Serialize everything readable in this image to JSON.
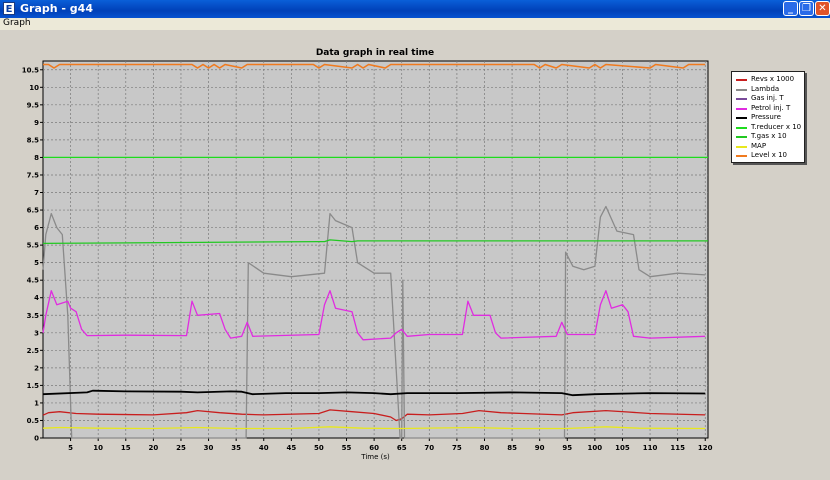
{
  "window": {
    "title": "Graph - g44",
    "icon_letter": "E",
    "buttons": {
      "minimize": "_",
      "restore": "❐",
      "close": "✕"
    }
  },
  "menu": {
    "items": [
      "Graph"
    ]
  },
  "colors": {
    "revs": "#c81e1e",
    "lambda": "#8a8a8a",
    "gas_inj": "#7a4a9a",
    "petrol_inj": "#e02ce0",
    "pressure": "#000000",
    "t_reducer": "#1edc1e",
    "t_gas": "#22c822",
    "map": "#e8e81e",
    "level": "#f07a1e"
  },
  "chart_data": {
    "type": "line",
    "title": "Data graph in real time",
    "xlabel": "Time (s)",
    "ylabel": "",
    "xlim": [
      0,
      120.5
    ],
    "ylim": [
      0,
      10.75
    ],
    "grid": true,
    "legend_placement": "right",
    "xticks": [
      5,
      10,
      15,
      20,
      25,
      30,
      35,
      40,
      45,
      50,
      55,
      60,
      65,
      70,
      75,
      80,
      85,
      90,
      95,
      100,
      105,
      110,
      115,
      120
    ],
    "yticks": [
      0,
      0.5,
      1,
      1.5,
      2,
      2.5,
      3,
      3.5,
      4,
      4.5,
      5,
      5.5,
      6,
      6.5,
      7,
      7.5,
      8,
      8.5,
      9,
      9.5,
      10,
      10.5
    ],
    "ytick_labels": [
      "0",
      "0.5",
      "1",
      "1.5",
      "2",
      "2.5",
      "3",
      "3.5",
      "4",
      "4.5",
      "5",
      "5.5",
      "6",
      "6.5",
      "7",
      "7.5",
      "8",
      "8.5",
      "9",
      "9.5",
      "10",
      "10.5"
    ],
    "series": [
      {
        "name": "Revs x 1000",
        "color_key": "revs",
        "points": [
          [
            0,
            0.65
          ],
          [
            1,
            0.72
          ],
          [
            3,
            0.75
          ],
          [
            6,
            0.7
          ],
          [
            10,
            0.68
          ],
          [
            20,
            0.66
          ],
          [
            26,
            0.72
          ],
          [
            28,
            0.78
          ],
          [
            32,
            0.72
          ],
          [
            36,
            0.68
          ],
          [
            40,
            0.66
          ],
          [
            50,
            0.7
          ],
          [
            52,
            0.8
          ],
          [
            56,
            0.75
          ],
          [
            60,
            0.7
          ],
          [
            63,
            0.6
          ],
          [
            64,
            0.5
          ],
          [
            65,
            0.55
          ],
          [
            66,
            0.68
          ],
          [
            70,
            0.66
          ],
          [
            76,
            0.7
          ],
          [
            79,
            0.78
          ],
          [
            83,
            0.72
          ],
          [
            87,
            0.7
          ],
          [
            94,
            0.66
          ],
          [
            96,
            0.72
          ],
          [
            102,
            0.78
          ],
          [
            106,
            0.74
          ],
          [
            110,
            0.7
          ],
          [
            120,
            0.66
          ]
        ]
      },
      {
        "name": "Lambda",
        "color_key": "lambda",
        "points": [
          [
            0,
            4.8
          ],
          [
            0.5,
            5.8
          ],
          [
            1.5,
            6.4
          ],
          [
            2.5,
            6.0
          ],
          [
            3.5,
            5.8
          ],
          [
            4.5,
            3.5
          ],
          [
            5.2,
            0
          ],
          [
            36.8,
            0
          ],
          [
            37.2,
            5.0
          ],
          [
            40,
            4.7
          ],
          [
            45,
            4.6
          ],
          [
            51,
            4.7
          ],
          [
            52,
            6.4
          ],
          [
            53,
            6.2
          ],
          [
            56,
            6.0
          ],
          [
            57,
            5.0
          ],
          [
            60,
            4.7
          ],
          [
            63,
            4.7
          ],
          [
            64.7,
            0
          ],
          [
            65,
            0
          ],
          [
            65.2,
            4.5
          ],
          [
            65.5,
            0
          ],
          [
            94.5,
            0
          ],
          [
            94.7,
            5.3
          ],
          [
            96,
            4.9
          ],
          [
            98,
            4.8
          ],
          [
            100,
            4.9
          ],
          [
            101,
            6.3
          ],
          [
            102,
            6.6
          ],
          [
            104,
            5.9
          ],
          [
            107,
            5.8
          ],
          [
            108,
            4.8
          ],
          [
            110,
            4.6
          ],
          [
            115,
            4.7
          ],
          [
            120,
            4.65
          ]
        ]
      },
      {
        "name": "Gas inj. T",
        "color_key": "gas_inj",
        "points": []
      },
      {
        "name": "Petrol inj. T",
        "color_key": "petrol_inj",
        "points": [
          [
            0,
            3.0
          ],
          [
            0.5,
            3.5
          ],
          [
            1.5,
            4.2
          ],
          [
            2.5,
            3.8
          ],
          [
            4.5,
            3.9
          ],
          [
            5,
            3.7
          ],
          [
            6,
            3.6
          ],
          [
            7,
            3.1
          ],
          [
            8,
            2.92
          ],
          [
            15,
            2.93
          ],
          [
            26,
            2.92
          ],
          [
            27,
            3.9
          ],
          [
            28,
            3.5
          ],
          [
            32,
            3.55
          ],
          [
            33,
            3.1
          ],
          [
            34,
            2.85
          ],
          [
            36,
            2.9
          ],
          [
            37,
            3.3
          ],
          [
            38,
            2.9
          ],
          [
            50,
            2.95
          ],
          [
            51,
            3.8
          ],
          [
            52,
            4.2
          ],
          [
            53,
            3.7
          ],
          [
            56,
            3.6
          ],
          [
            57,
            3.0
          ],
          [
            58,
            2.8
          ],
          [
            63,
            2.85
          ],
          [
            64,
            3.0
          ],
          [
            65,
            3.1
          ],
          [
            66,
            2.9
          ],
          [
            70,
            2.95
          ],
          [
            76,
            2.95
          ],
          [
            77,
            3.9
          ],
          [
            78,
            3.5
          ],
          [
            81,
            3.5
          ],
          [
            82,
            3.0
          ],
          [
            83,
            2.85
          ],
          [
            93,
            2.9
          ],
          [
            94,
            3.3
          ],
          [
            95,
            2.95
          ],
          [
            100,
            2.95
          ],
          [
            101,
            3.8
          ],
          [
            102,
            4.2
          ],
          [
            103,
            3.7
          ],
          [
            105,
            3.8
          ],
          [
            106,
            3.6
          ],
          [
            107,
            2.9
          ],
          [
            110,
            2.85
          ],
          [
            120,
            2.9
          ]
        ]
      },
      {
        "name": "Pressure",
        "color_key": "pressure",
        "points": [
          [
            0,
            1.25
          ],
          [
            8,
            1.3
          ],
          [
            9,
            1.35
          ],
          [
            15,
            1.33
          ],
          [
            25,
            1.32
          ],
          [
            28,
            1.3
          ],
          [
            34,
            1.33
          ],
          [
            36,
            1.32
          ],
          [
            38,
            1.25
          ],
          [
            44,
            1.28
          ],
          [
            50,
            1.28
          ],
          [
            55,
            1.3
          ],
          [
            60,
            1.28
          ],
          [
            63,
            1.25
          ],
          [
            66,
            1.28
          ],
          [
            75,
            1.28
          ],
          [
            85,
            1.3
          ],
          [
            94,
            1.28
          ],
          [
            96,
            1.22
          ],
          [
            100,
            1.25
          ],
          [
            110,
            1.28
          ],
          [
            120,
            1.27
          ]
        ]
      },
      {
        "name": "T.reducer x 10",
        "color_key": "t_reducer",
        "points": [
          [
            0,
            8.0
          ],
          [
            120.5,
            8.0
          ]
        ]
      },
      {
        "name": "T.gas x 10",
        "color_key": "t_gas",
        "points": [
          [
            0,
            5.55
          ],
          [
            50,
            5.6
          ],
          [
            51,
            5.6
          ],
          [
            52,
            5.65
          ],
          [
            56,
            5.6
          ],
          [
            57,
            5.62
          ],
          [
            120.5,
            5.62
          ]
        ]
      },
      {
        "name": "MAP",
        "color_key": "map",
        "points": [
          [
            0,
            0.28
          ],
          [
            3,
            0.3
          ],
          [
            10,
            0.28
          ],
          [
            20,
            0.27
          ],
          [
            28,
            0.3
          ],
          [
            35,
            0.27
          ],
          [
            45,
            0.27
          ],
          [
            52,
            0.32
          ],
          [
            58,
            0.28
          ],
          [
            65,
            0.27
          ],
          [
            78,
            0.3
          ],
          [
            85,
            0.27
          ],
          [
            95,
            0.27
          ],
          [
            102,
            0.32
          ],
          [
            108,
            0.28
          ],
          [
            120,
            0.27
          ]
        ]
      },
      {
        "name": "Level x 10",
        "color_key": "level",
        "points": [
          [
            0,
            10.65
          ],
          [
            1,
            10.65
          ],
          [
            2,
            10.55
          ],
          [
            3,
            10.65
          ],
          [
            27,
            10.65
          ],
          [
            28,
            10.55
          ],
          [
            29,
            10.65
          ],
          [
            30,
            10.55
          ],
          [
            31,
            10.65
          ],
          [
            32,
            10.55
          ],
          [
            33,
            10.65
          ],
          [
            36,
            10.55
          ],
          [
            37,
            10.65
          ],
          [
            49,
            10.65
          ],
          [
            50,
            10.55
          ],
          [
            51,
            10.65
          ],
          [
            56,
            10.55
          ],
          [
            57,
            10.65
          ],
          [
            58,
            10.55
          ],
          [
            59,
            10.65
          ],
          [
            62,
            10.55
          ],
          [
            63,
            10.65
          ],
          [
            89,
            10.65
          ],
          [
            90,
            10.55
          ],
          [
            91,
            10.65
          ],
          [
            93,
            10.55
          ],
          [
            94,
            10.65
          ],
          [
            99,
            10.55
          ],
          [
            100,
            10.65
          ],
          [
            101,
            10.55
          ],
          [
            102,
            10.65
          ],
          [
            110,
            10.55
          ],
          [
            111,
            10.65
          ],
          [
            116,
            10.55
          ],
          [
            117,
            10.65
          ],
          [
            120,
            10.65
          ]
        ]
      }
    ]
  }
}
